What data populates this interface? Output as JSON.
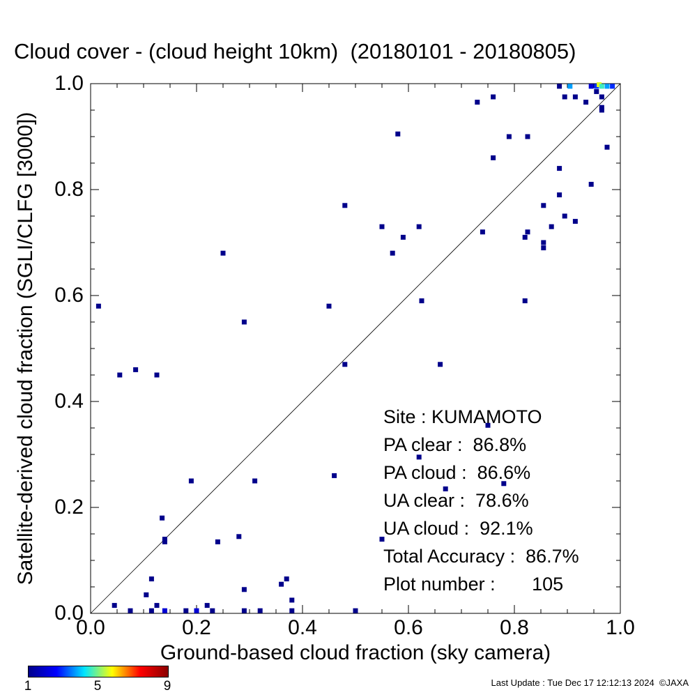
{
  "title": "Cloud cover - (cloud height 10km)  (20180101 - 20180805)",
  "chart_data": {
    "type": "scatter",
    "title": "Cloud cover - (cloud height 10km)  (20180101 - 20180805)",
    "xlabel": "Ground-based cloud fraction (sky camera)",
    "ylabel": "Satellite-derived cloud fraction (SGLI/CLFG [3000])",
    "xlim": [
      0.0,
      1.0
    ],
    "ylim": [
      0.0,
      1.0
    ],
    "xticks": [
      "0.0",
      "0.2",
      "0.4",
      "0.6",
      "0.8",
      "1.0"
    ],
    "yticks": [
      "0.0",
      "0.2",
      "0.4",
      "0.6",
      "0.8",
      "1.0"
    ],
    "reference_line": "1:1 diagonal",
    "grid": false,
    "colorbar": {
      "label_min": "1",
      "label_mid": "5",
      "label_max": "9",
      "min": 1,
      "max": 9
    },
    "points": [
      {
        "x": 0.015,
        "y": 0.58,
        "c": 1
      },
      {
        "x": 0.055,
        "y": 0.45,
        "c": 1
      },
      {
        "x": 0.085,
        "y": 0.46,
        "c": 1
      },
      {
        "x": 0.125,
        "y": 0.45,
        "c": 1
      },
      {
        "x": 0.19,
        "y": 0.25,
        "c": 1
      },
      {
        "x": 0.25,
        "y": 0.68,
        "c": 1
      },
      {
        "x": 0.29,
        "y": 0.55,
        "c": 1
      },
      {
        "x": 0.31,
        "y": 0.25,
        "c": 1
      },
      {
        "x": 0.135,
        "y": 0.18,
        "c": 1
      },
      {
        "x": 0.14,
        "y": 0.14,
        "c": 1
      },
      {
        "x": 0.14,
        "y": 0.135,
        "c": 1
      },
      {
        "x": 0.24,
        "y": 0.135,
        "c": 1
      },
      {
        "x": 0.28,
        "y": 0.145,
        "c": 1
      },
      {
        "x": 0.115,
        "y": 0.065,
        "c": 1
      },
      {
        "x": 0.105,
        "y": 0.035,
        "c": 1
      },
      {
        "x": 0.045,
        "y": 0.015,
        "c": 1
      },
      {
        "x": 0.125,
        "y": 0.015,
        "c": 1
      },
      {
        "x": 0.22,
        "y": 0.015,
        "c": 1
      },
      {
        "x": 0.29,
        "y": 0.045,
        "c": 1
      },
      {
        "x": 0.36,
        "y": 0.055,
        "c": 1
      },
      {
        "x": 0.37,
        "y": 0.065,
        "c": 1
      },
      {
        "x": 0.38,
        "y": 0.025,
        "c": 1
      },
      {
        "x": 0.075,
        "y": 0.005,
        "c": 1
      },
      {
        "x": 0.115,
        "y": 0.005,
        "c": 1
      },
      {
        "x": 0.14,
        "y": 0.005,
        "c": 2
      },
      {
        "x": 0.18,
        "y": 0.005,
        "c": 1
      },
      {
        "x": 0.2,
        "y": 0.005,
        "c": 2
      },
      {
        "x": 0.23,
        "y": 0.005,
        "c": 1
      },
      {
        "x": 0.29,
        "y": 0.005,
        "c": 1
      },
      {
        "x": 0.32,
        "y": 0.005,
        "c": 1
      },
      {
        "x": 0.38,
        "y": 0.005,
        "c": 1
      },
      {
        "x": 0.5,
        "y": 0.005,
        "c": 1
      },
      {
        "x": 0.45,
        "y": 0.58,
        "c": 1
      },
      {
        "x": 0.48,
        "y": 0.77,
        "c": 1
      },
      {
        "x": 0.48,
        "y": 0.47,
        "c": 1
      },
      {
        "x": 0.46,
        "y": 0.26,
        "c": 1
      },
      {
        "x": 0.55,
        "y": 0.73,
        "c": 1
      },
      {
        "x": 0.57,
        "y": 0.68,
        "c": 1
      },
      {
        "x": 0.58,
        "y": 0.905,
        "c": 1
      },
      {
        "x": 0.59,
        "y": 0.71,
        "c": 1
      },
      {
        "x": 0.62,
        "y": 0.73,
        "c": 1
      },
      {
        "x": 0.625,
        "y": 0.59,
        "c": 1
      },
      {
        "x": 0.66,
        "y": 0.47,
        "c": 1
      },
      {
        "x": 0.62,
        "y": 0.295,
        "c": 1
      },
      {
        "x": 0.67,
        "y": 0.235,
        "c": 1
      },
      {
        "x": 0.75,
        "y": 0.355,
        "c": 1
      },
      {
        "x": 0.78,
        "y": 0.245,
        "c": 1
      },
      {
        "x": 0.55,
        "y": 0.14,
        "c": 1
      },
      {
        "x": 0.73,
        "y": 0.965,
        "c": 1
      },
      {
        "x": 0.76,
        "y": 0.975,
        "c": 1
      },
      {
        "x": 0.74,
        "y": 0.72,
        "c": 1
      },
      {
        "x": 0.76,
        "y": 0.86,
        "c": 1
      },
      {
        "x": 0.79,
        "y": 0.9,
        "c": 1
      },
      {
        "x": 0.825,
        "y": 0.9,
        "c": 1
      },
      {
        "x": 0.82,
        "y": 0.71,
        "c": 1
      },
      {
        "x": 0.825,
        "y": 0.72,
        "c": 1
      },
      {
        "x": 0.82,
        "y": 0.59,
        "c": 1
      },
      {
        "x": 0.855,
        "y": 0.77,
        "c": 1
      },
      {
        "x": 0.855,
        "y": 0.7,
        "c": 1
      },
      {
        "x": 0.855,
        "y": 0.69,
        "c": 1
      },
      {
        "x": 0.87,
        "y": 0.73,
        "c": 1
      },
      {
        "x": 0.885,
        "y": 0.84,
        "c": 1
      },
      {
        "x": 0.885,
        "y": 0.79,
        "c": 1
      },
      {
        "x": 0.895,
        "y": 0.75,
        "c": 1
      },
      {
        "x": 0.915,
        "y": 0.74,
        "c": 1
      },
      {
        "x": 0.945,
        "y": 0.81,
        "c": 1
      },
      {
        "x": 0.965,
        "y": 0.95,
        "c": 1
      },
      {
        "x": 0.965,
        "y": 0.955,
        "c": 1
      },
      {
        "x": 0.975,
        "y": 0.88,
        "c": 1
      },
      {
        "x": 0.895,
        "y": 0.975,
        "c": 1
      },
      {
        "x": 0.915,
        "y": 0.975,
        "c": 1
      },
      {
        "x": 0.935,
        "y": 0.965,
        "c": 1
      },
      {
        "x": 0.955,
        "y": 0.985,
        "c": 1
      },
      {
        "x": 0.965,
        "y": 0.975,
        "c": 1
      },
      {
        "x": 0.885,
        "y": 0.995,
        "c": 1
      },
      {
        "x": 0.905,
        "y": 0.995,
        "c": 4
      },
      {
        "x": 0.945,
        "y": 0.995,
        "c": 2
      },
      {
        "x": 0.955,
        "y": 0.995,
        "c": 3
      },
      {
        "x": 0.96,
        "y": 0.998,
        "c": 6
      },
      {
        "x": 0.965,
        "y": 0.995,
        "c": 5
      },
      {
        "x": 0.975,
        "y": 0.995,
        "c": 4
      },
      {
        "x": 0.985,
        "y": 0.995,
        "c": 3
      }
    ]
  },
  "info": {
    "site": "Site : KUMAMOTO",
    "pa_clear": "PA clear :  86.8%",
    "pa_cloud": "PA cloud :  86.6%",
    "ua_clear": "UA clear :  78.6%",
    "ua_cloud": "UA cloud :  92.1%",
    "total_accuracy": "Total Accuracy :  86.7%",
    "plot_number": "Plot number :       105"
  },
  "last_update": "Last Update : Tue Dec 17 12:12:13 2024  ©JAXA"
}
